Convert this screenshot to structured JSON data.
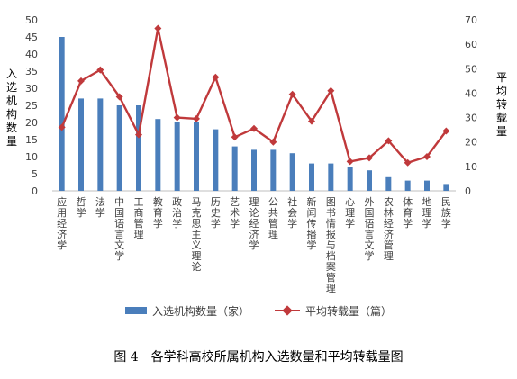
{
  "chart_data": {
    "type": "bar",
    "categories": [
      "应用经济学",
      "哲学",
      "法学",
      "中国语言文学",
      "工商管理",
      "教育学",
      "政治学",
      "马克思主义理论",
      "历史学",
      "艺术学",
      "理论经济学",
      "公共管理",
      "社会学",
      "新闻传播学",
      "图书情报与档案管理",
      "心理学",
      "外国语言文学",
      "农林经济管理",
      "体育学",
      "地理学",
      "民族学"
    ],
    "series": [
      {
        "name": "入选机构数量（家）",
        "type": "bar",
        "axis": "left",
        "color": "#4a7ebb",
        "values": [
          45,
          27,
          27,
          25,
          25,
          21,
          20,
          20,
          18,
          13,
          12,
          12,
          11,
          8,
          8,
          7,
          6,
          4,
          3,
          3,
          2
        ]
      },
      {
        "name": "平均转载量（篇）",
        "type": "line",
        "axis": "right",
        "color": "#c0393b",
        "values": [
          26,
          45,
          49.5,
          38.5,
          23,
          66.5,
          30,
          29.5,
          46.5,
          22,
          25.5,
          20,
          39.5,
          28.5,
          41,
          12,
          13.5,
          20.5,
          11.5,
          14,
          24.5
        ]
      }
    ],
    "y_left": {
      "label": "入选机构数量",
      "ylim": [
        0,
        50
      ],
      "ticks": [
        0,
        5,
        10,
        15,
        20,
        25,
        30,
        35,
        40,
        45,
        50
      ]
    },
    "y_right": {
      "label": "平均转载量",
      "ylim": [
        0,
        70
      ],
      "ticks": [
        0,
        10,
        20,
        30,
        40,
        50,
        60,
        70
      ]
    },
    "grid": false,
    "legend_position": "bottom"
  },
  "caption": "图 4　各学科高校所属机构入选数量和平均转载量图"
}
